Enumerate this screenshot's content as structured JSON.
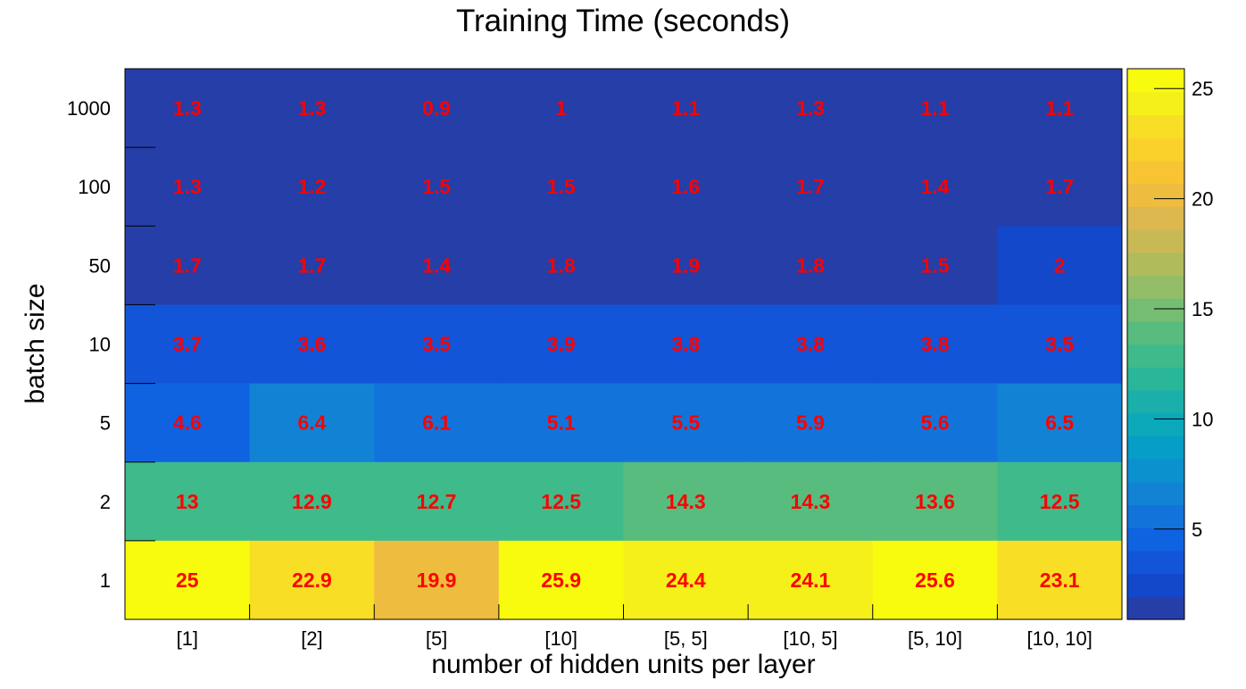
{
  "chart_data": {
    "type": "heatmap",
    "title": "Training Time (seconds)",
    "xlabel": "number of hidden units per layer",
    "ylabel": "batch size",
    "x_categories": [
      "[1]",
      "[2]",
      "[5]",
      "[10]",
      "[5, 5]",
      "[10, 5]",
      "[5, 10]",
      "[10, 10]"
    ],
    "y_categories": [
      "1000",
      "100",
      "50",
      "10",
      "5",
      "2",
      "1"
    ],
    "values": [
      [
        1.3,
        1.3,
        0.9,
        1,
        1.1,
        1.3,
        1.1,
        1.1
      ],
      [
        1.3,
        1.2,
        1.5,
        1.5,
        1.6,
        1.7,
        1.4,
        1.7
      ],
      [
        1.7,
        1.7,
        1.4,
        1.8,
        1.9,
        1.8,
        1.5,
        2
      ],
      [
        3.7,
        3.6,
        3.5,
        3.9,
        3.8,
        3.8,
        3.8,
        3.5
      ],
      [
        4.6,
        6.4,
        6.1,
        5.1,
        5.5,
        5.9,
        5.6,
        6.5
      ],
      [
        13,
        12.9,
        12.7,
        12.5,
        14.3,
        14.3,
        13.6,
        12.5
      ],
      [
        25,
        22.9,
        19.9,
        25.9,
        24.4,
        24.1,
        25.6,
        23.1
      ]
    ],
    "colorbar": {
      "range": [
        0.9,
        25.9
      ],
      "ticks": [
        5,
        10,
        15,
        20,
        25
      ],
      "palette": [
        "#253ea8",
        "#1448cb",
        "#1355d8",
        "#0f63e0",
        "#1274db",
        "#1283d4",
        "#0c91cf",
        "#069dc7",
        "#0ba8ba",
        "#1aafaa",
        "#2ab699",
        "#3fba8b",
        "#58bc7e",
        "#74bd72",
        "#93bd66",
        "#b0bb5b",
        "#c9b955",
        "#ddb84e",
        "#eebc3f",
        "#f8c434",
        "#fad12b",
        "#f8df25",
        "#f5ef1a",
        "#f9fb0e"
      ]
    },
    "label_color": "#ff0000",
    "grid": false,
    "legend": "colorbar-right"
  }
}
